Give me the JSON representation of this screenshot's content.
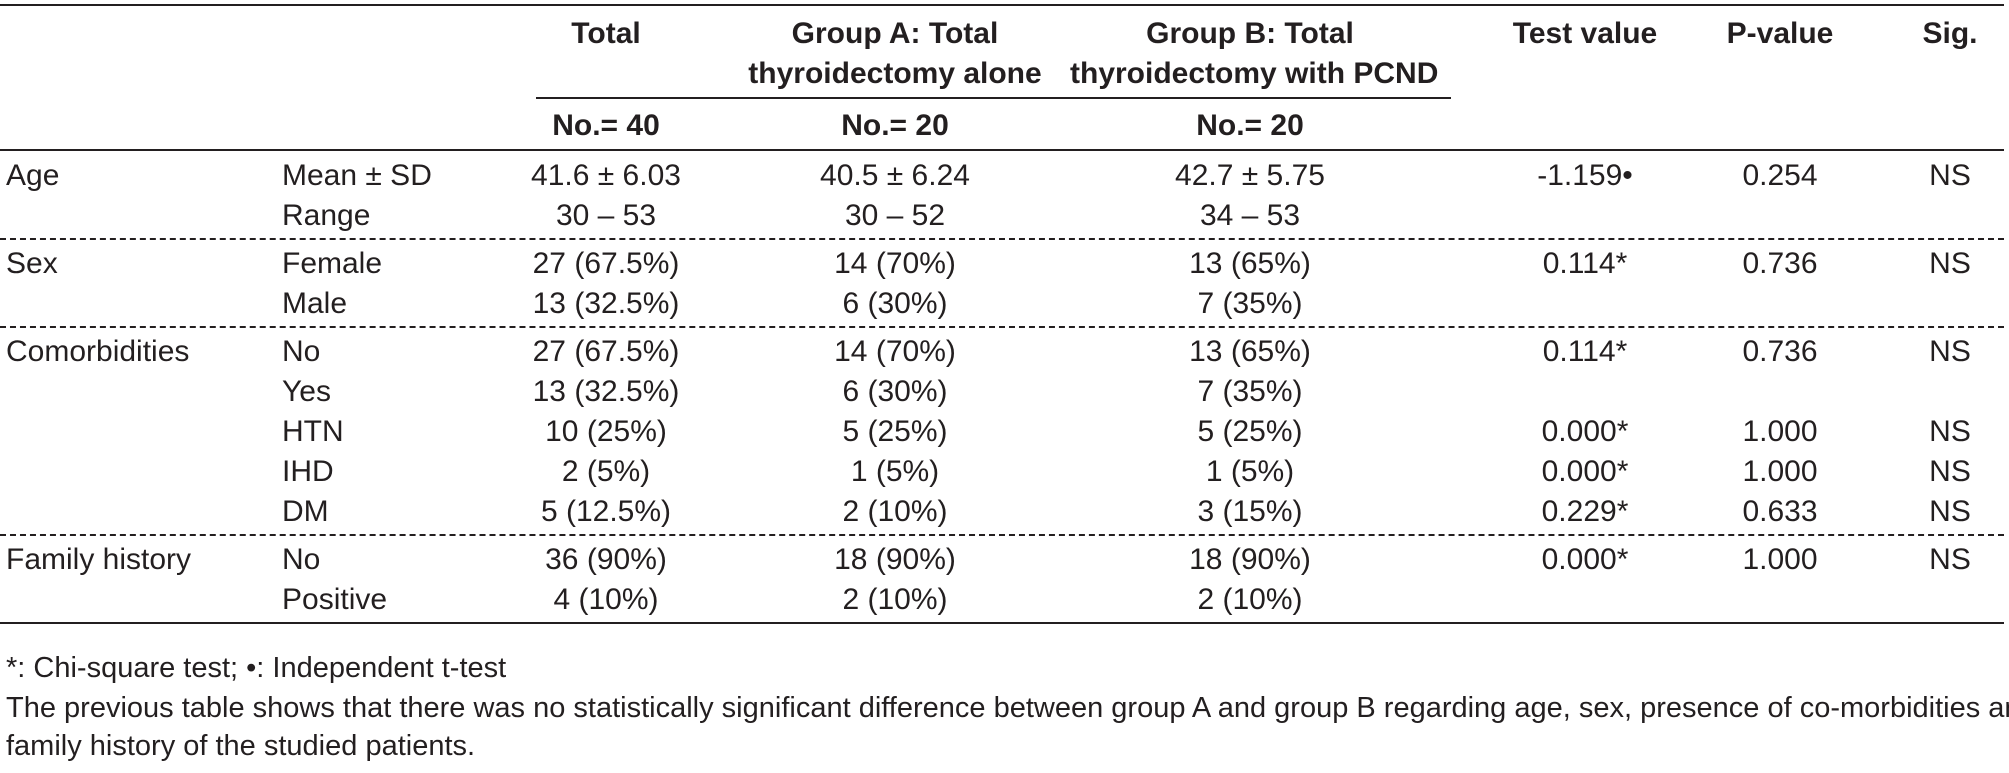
{
  "table": {
    "headers": {
      "total": "Total",
      "group_a": [
        "Group A: Total",
        "thyroidectomy alone"
      ],
      "group_b": [
        "Group B: Total",
        "thyroidectomy with PCND"
      ],
      "test_value": "Test value",
      "p_value": "P-value",
      "sig": "Sig.",
      "n_total": "No.= 40",
      "n_a": "No.= 20",
      "n_b": "No.= 20"
    },
    "sections": [
      {
        "label": "Age",
        "rows": [
          {
            "sub": "Mean ± SD",
            "total": "41.6 ± 6.03",
            "a": "40.5 ± 6.24",
            "b": "42.7 ± 5.75",
            "test": "-1.159•",
            "p": "0.254",
            "sig": "NS"
          },
          {
            "sub": "Range",
            "total": "30 – 53",
            "a": "30 – 52",
            "b": "34 – 53",
            "test": "",
            "p": "",
            "sig": ""
          }
        ]
      },
      {
        "label": "Sex",
        "rows": [
          {
            "sub": "Female",
            "total": "27 (67.5%)",
            "a": "14 (70%)",
            "b": "13 (65%)",
            "test": "0.114*",
            "p": "0.736",
            "sig": "NS"
          },
          {
            "sub": "Male",
            "total": "13 (32.5%)",
            "a": "6 (30%)",
            "b": "7 (35%)",
            "test": "",
            "p": "",
            "sig": ""
          }
        ]
      },
      {
        "label": "Comorbidities",
        "rows": [
          {
            "sub": "No",
            "total": "27 (67.5%)",
            "a": "14 (70%)",
            "b": "13 (65%)",
            "test": "0.114*",
            "p": "0.736",
            "sig": "NS"
          },
          {
            "sub": "Yes",
            "total": "13 (32.5%)",
            "a": "6 (30%)",
            "b": "7 (35%)",
            "test": "",
            "p": "",
            "sig": ""
          },
          {
            "sub": "HTN",
            "total": "10 (25%)",
            "a": "5 (25%)",
            "b": "5 (25%)",
            "test": "0.000*",
            "p": "1.000",
            "sig": "NS"
          },
          {
            "sub": "IHD",
            "total": "2 (5%)",
            "a": "1 (5%)",
            "b": "1 (5%)",
            "test": "0.000*",
            "p": "1.000",
            "sig": "NS"
          },
          {
            "sub": "DM",
            "total": "5 (12.5%)",
            "a": "2 (10%)",
            "b": "3 (15%)",
            "test": "0.229*",
            "p": "0.633",
            "sig": "NS"
          }
        ]
      },
      {
        "label": "Family history",
        "rows": [
          {
            "sub": "No",
            "total": "36 (90%)",
            "a": "18 (90%)",
            "b": "18 (90%)",
            "test": "0.000*",
            "p": "1.000",
            "sig": "NS"
          },
          {
            "sub": "Positive",
            "total": "4 (10%)",
            "a": "2 (10%)",
            "b": "2 (10%)",
            "test": "",
            "p": "",
            "sig": ""
          }
        ]
      }
    ]
  },
  "footnote": "*: Chi-square test; •: Independent t-test",
  "caption": [
    "The previous table shows that there was no statistically significant difference between group A and group B regarding age, sex, presence of co-morbidities and",
    "family history of the studied patients."
  ]
}
